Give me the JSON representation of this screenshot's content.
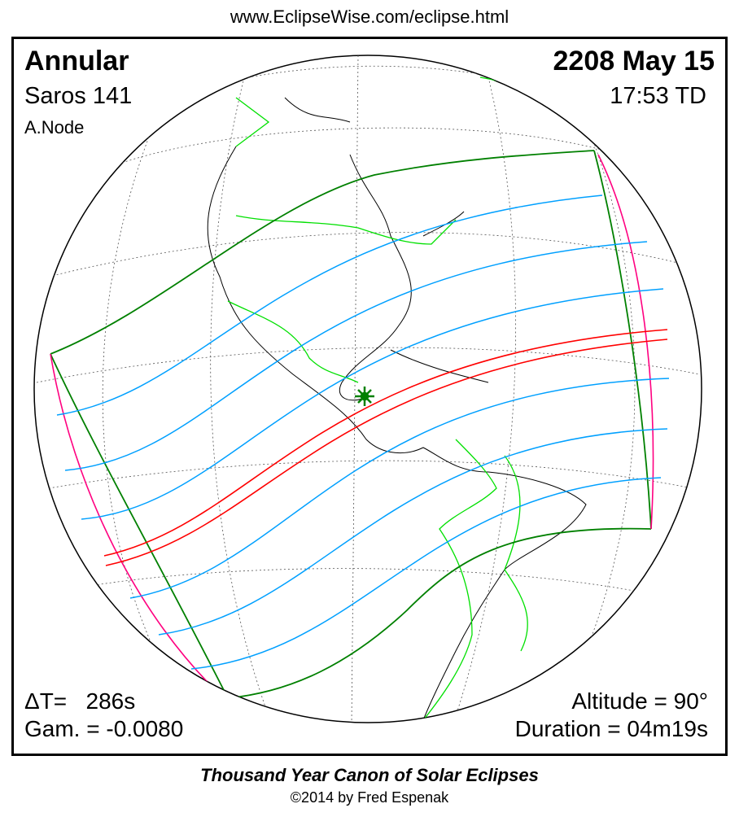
{
  "header": {
    "url": "www.EclipseWise.com/eclipse.html"
  },
  "eclipse": {
    "type": "Annular",
    "saros": "Saros 141",
    "node": "A.Node",
    "date": "2208 May 15",
    "time": "17:53 TD",
    "delta_t": "ΔT=   286s",
    "gamma": "Gam. = -0.0080",
    "altitude": "Altitude = 90°",
    "duration": "Duration = 04m19s"
  },
  "footer": {
    "title": "Thousand Year Canon of Solar Eclipses",
    "copyright": "©2014 by Fred Espenak"
  },
  "colors": {
    "penumbra_limit": "#008000",
    "rise_set_limit": "#ff0080",
    "magnitude_lines": "#00a0ff",
    "central_path": "#ff0000",
    "borders": "#00e000",
    "coastlines": "#000000",
    "greatest_eclipse_marker": "#008000"
  },
  "icons": {
    "greatest_eclipse": "star-marker"
  }
}
